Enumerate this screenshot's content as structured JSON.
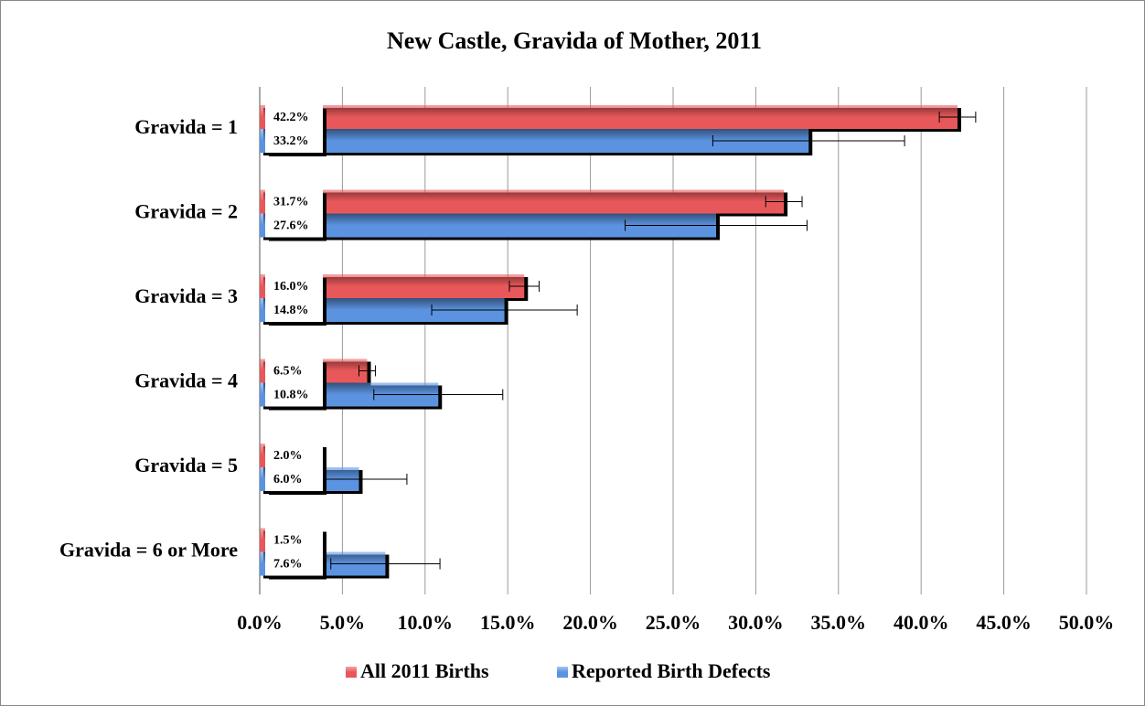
{
  "chart_data": {
    "type": "bar",
    "orientation": "horizontal",
    "title": "New Castle, Gravida of Mother, 2011",
    "categories": [
      "Gravida = 1",
      "Gravida = 2",
      "Gravida = 3",
      "Gravida = 4",
      "Gravida = 5",
      "Gravida = 6 or More"
    ],
    "series": [
      {
        "name": "All 2011 Births",
        "color": "#e8585a",
        "values": [
          42.2,
          31.7,
          16.0,
          6.5,
          2.0,
          1.5
        ],
        "value_labels": [
          "42.2%",
          "31.7%",
          "16.0%",
          "6.5%",
          "2.0%",
          "1.5%"
        ],
        "errors": [
          1.1,
          1.1,
          0.9,
          0.5,
          0.3,
          0.3
        ]
      },
      {
        "name": "Reported Birth Defects",
        "color": "#5b93e0",
        "values": [
          33.2,
          27.6,
          14.8,
          10.8,
          6.0,
          7.6
        ],
        "value_labels": [
          "33.2%",
          "27.6%",
          "14.8%",
          "10.8%",
          "6.0%",
          "7.6%"
        ],
        "errors": [
          5.8,
          5.5,
          4.4,
          3.9,
          2.9,
          3.3
        ]
      }
    ],
    "xlim": [
      0,
      50
    ],
    "xticks": [
      {
        "value": 0,
        "label": "0.0%"
      },
      {
        "value": 5,
        "label": "5.0%"
      },
      {
        "value": 10,
        "label": "10.0%"
      },
      {
        "value": 15,
        "label": "15.0%"
      },
      {
        "value": 20,
        "label": "20.0%"
      },
      {
        "value": 25,
        "label": "25.0%"
      },
      {
        "value": 30,
        "label": "30.0%"
      },
      {
        "value": 35,
        "label": "35.0%"
      },
      {
        "value": 40,
        "label": "40.0%"
      },
      {
        "value": 45,
        "label": "45.0%"
      },
      {
        "value": 50,
        "label": "50.0%"
      }
    ],
    "grid": true,
    "legend": "bottom"
  }
}
